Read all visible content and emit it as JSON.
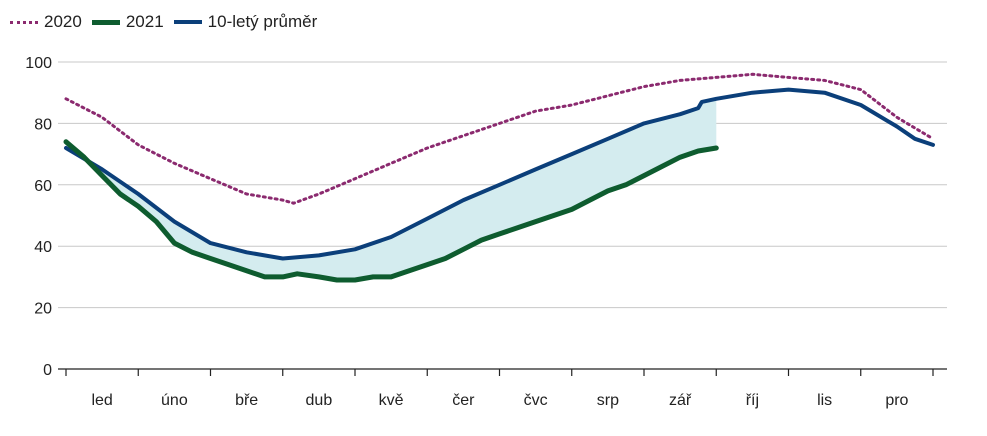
{
  "chart_data": {
    "type": "line",
    "title": "",
    "xlabel": "",
    "ylabel": "",
    "categories": [
      "led",
      "úno",
      "bře",
      "dub",
      "kvě",
      "čer",
      "čvc",
      "srp",
      "zář",
      "říj",
      "lis",
      "pro"
    ],
    "yticks": [
      0,
      20,
      40,
      60,
      80,
      100
    ],
    "ylim": [
      0,
      100
    ],
    "xlim": [
      0,
      12
    ],
    "grid": true,
    "legend_position": "top-left",
    "shaded_area": {
      "between": [
        "2021",
        "10-letý průměr"
      ],
      "color": "#d4ecef"
    },
    "series": [
      {
        "name": "2020",
        "color": "#8b2a6f",
        "style": "dotted",
        "points": [
          [
            0.0,
            88
          ],
          [
            0.5,
            82
          ],
          [
            1.0,
            73
          ],
          [
            1.5,
            67
          ],
          [
            2.0,
            62
          ],
          [
            2.5,
            57
          ],
          [
            3.0,
            55
          ],
          [
            3.15,
            54
          ],
          [
            3.5,
            57
          ],
          [
            4.0,
            62
          ],
          [
            4.5,
            67
          ],
          [
            5.0,
            72
          ],
          [
            5.5,
            76
          ],
          [
            6.0,
            80
          ],
          [
            6.5,
            84
          ],
          [
            7.0,
            86
          ],
          [
            7.5,
            89
          ],
          [
            8.0,
            92
          ],
          [
            8.5,
            94
          ],
          [
            9.0,
            95
          ],
          [
            9.5,
            96
          ],
          [
            10.0,
            95
          ],
          [
            10.5,
            94
          ],
          [
            11.0,
            91
          ],
          [
            11.5,
            82
          ],
          [
            12.0,
            75
          ]
        ]
      },
      {
        "name": "2021",
        "color": "#0e5c2f",
        "style": "solid",
        "points": [
          [
            0.0,
            74
          ],
          [
            0.25,
            69
          ],
          [
            0.5,
            63
          ],
          [
            0.75,
            57
          ],
          [
            1.0,
            53
          ],
          [
            1.25,
            48
          ],
          [
            1.5,
            41
          ],
          [
            1.75,
            38
          ],
          [
            2.0,
            36
          ],
          [
            2.25,
            34
          ],
          [
            2.5,
            32
          ],
          [
            2.75,
            30
          ],
          [
            3.0,
            30
          ],
          [
            3.2,
            31
          ],
          [
            3.5,
            30
          ],
          [
            3.75,
            29
          ],
          [
            4.0,
            29
          ],
          [
            4.25,
            30
          ],
          [
            4.5,
            30
          ],
          [
            4.75,
            32
          ],
          [
            5.0,
            34
          ],
          [
            5.25,
            36
          ],
          [
            5.5,
            39
          ],
          [
            5.75,
            42
          ],
          [
            6.0,
            44
          ],
          [
            6.25,
            46
          ],
          [
            6.5,
            48
          ],
          [
            6.75,
            50
          ],
          [
            7.0,
            52
          ],
          [
            7.25,
            55
          ],
          [
            7.5,
            58
          ],
          [
            7.75,
            60
          ],
          [
            8.0,
            63
          ],
          [
            8.25,
            66
          ],
          [
            8.5,
            69
          ],
          [
            8.75,
            71
          ],
          [
            9.0,
            72
          ]
        ]
      },
      {
        "name": "10-letý průměr",
        "color": "#0b3f7a",
        "style": "solid",
        "points": [
          [
            0.0,
            72
          ],
          [
            0.5,
            65
          ],
          [
            1.0,
            57
          ],
          [
            1.5,
            48
          ],
          [
            2.0,
            41
          ],
          [
            2.5,
            38
          ],
          [
            3.0,
            36
          ],
          [
            3.5,
            37
          ],
          [
            4.0,
            39
          ],
          [
            4.5,
            43
          ],
          [
            5.0,
            49
          ],
          [
            5.5,
            55
          ],
          [
            6.0,
            60
          ],
          [
            6.5,
            65
          ],
          [
            7.0,
            70
          ],
          [
            7.5,
            75
          ],
          [
            8.0,
            80
          ],
          [
            8.5,
            83
          ],
          [
            8.75,
            85
          ],
          [
            8.8,
            87
          ],
          [
            9.0,
            88
          ],
          [
            9.5,
            90
          ],
          [
            10.0,
            91
          ],
          [
            10.5,
            90
          ],
          [
            11.0,
            86
          ],
          [
            11.5,
            79
          ],
          [
            11.75,
            75
          ],
          [
            12.0,
            73
          ]
        ]
      }
    ]
  }
}
